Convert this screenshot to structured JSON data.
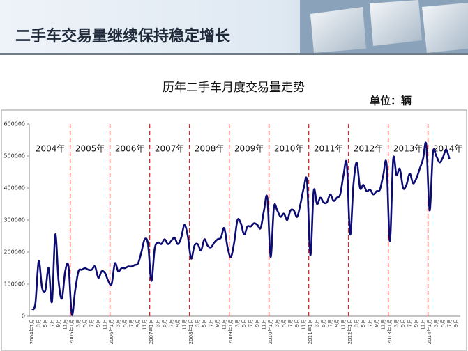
{
  "header": {
    "title": "二手车交易量继续保持稳定增长"
  },
  "chart_data": {
    "type": "line",
    "title": "历年二手车月度交易量走势",
    "unit": "单位：辆",
    "categories": [
      "2004年1月",
      null,
      "3月",
      null,
      "5月",
      null,
      "7月",
      null,
      "9月",
      null,
      "11月",
      null,
      "2005年1月",
      null,
      "3月",
      null,
      "5月",
      null,
      "7月",
      null,
      "9月",
      null,
      "11月",
      null,
      "2006年1月",
      null,
      "3月",
      null,
      "5月",
      null,
      "7月",
      null,
      "9月",
      null,
      "11月",
      null,
      "2007年1月",
      null,
      "3月",
      null,
      "5月",
      null,
      "7月",
      null,
      "9月",
      null,
      "11月",
      null,
      "2008年1月",
      null,
      "3月",
      null,
      "5月",
      null,
      "7月",
      null,
      "9月",
      null,
      "11月",
      null,
      "2009年1月",
      null,
      "3月",
      null,
      "5月",
      null,
      "7月",
      null,
      "9月",
      null,
      "11月",
      null,
      "2010年1月",
      null,
      "3月",
      null,
      "5月",
      null,
      "7月",
      null,
      "9月",
      null,
      "11月",
      null,
      "2011年1月",
      null,
      "3月",
      null,
      "5月",
      null,
      "7月",
      null,
      "9月",
      null,
      "11月",
      null,
      "2012年1月",
      null,
      "3月",
      null,
      "5月",
      null,
      "7月",
      null,
      "9月",
      null,
      "11月",
      null,
      "2013年1月",
      null,
      "3月",
      null,
      "5月",
      null,
      "7月",
      null,
      "9月",
      null,
      "11月",
      null,
      "2014年1月",
      null,
      "3月",
      null,
      "5月",
      null,
      "7月",
      null,
      "9月"
    ],
    "series": [
      {
        "color": "#0c0c72",
        "values": [
          20000,
          40000,
          172000,
          90000,
          80000,
          150000,
          45000,
          255000,
          110000,
          55000,
          140000,
          155000,
          5000,
          80000,
          140000,
          145000,
          150000,
          145000,
          145000,
          155000,
          120000,
          140000,
          135000,
          110000,
          100000,
          165000,
          140000,
          150000,
          150000,
          155000,
          155000,
          160000,
          165000,
          200000,
          240000,
          225000,
          110000,
          210000,
          230000,
          225000,
          240000,
          225000,
          235000,
          245000,
          225000,
          245000,
          285000,
          250000,
          180000,
          220000,
          225000,
          205000,
          240000,
          220000,
          215000,
          230000,
          240000,
          245000,
          275000,
          215000,
          185000,
          230000,
          300000,
          290000,
          255000,
          280000,
          280000,
          290000,
          285000,
          275000,
          330000,
          370000,
          185000,
          340000,
          330000,
          310000,
          320000,
          300000,
          330000,
          330000,
          310000,
          350000,
          400000,
          420000,
          190000,
          390000,
          350000,
          370000,
          355000,
          355000,
          380000,
          360000,
          370000,
          380000,
          440000,
          475000,
          255000,
          410000,
          480000,
          400000,
          410000,
          390000,
          395000,
          380000,
          390000,
          395000,
          440000,
          475000,
          235000,
          490000,
          440000,
          460000,
          400000,
          410000,
          445000,
          415000,
          430000,
          460000,
          490000,
          535000,
          330000,
          510000,
          500000,
          480000,
          495000,
          520000,
          490000,
          null,
          null
        ]
      }
    ],
    "year_labels": [
      "2004年",
      "2005年",
      "2006年",
      "2007年",
      "2008年",
      "2009年",
      "2010年",
      "2011年",
      "2012年",
      "2013年",
      "2014年"
    ],
    "divider_color": "#e02424",
    "ylim": [
      0,
      600000
    ],
    "yticks": [
      0,
      100000,
      200000,
      300000,
      400000,
      500000,
      600000
    ]
  }
}
